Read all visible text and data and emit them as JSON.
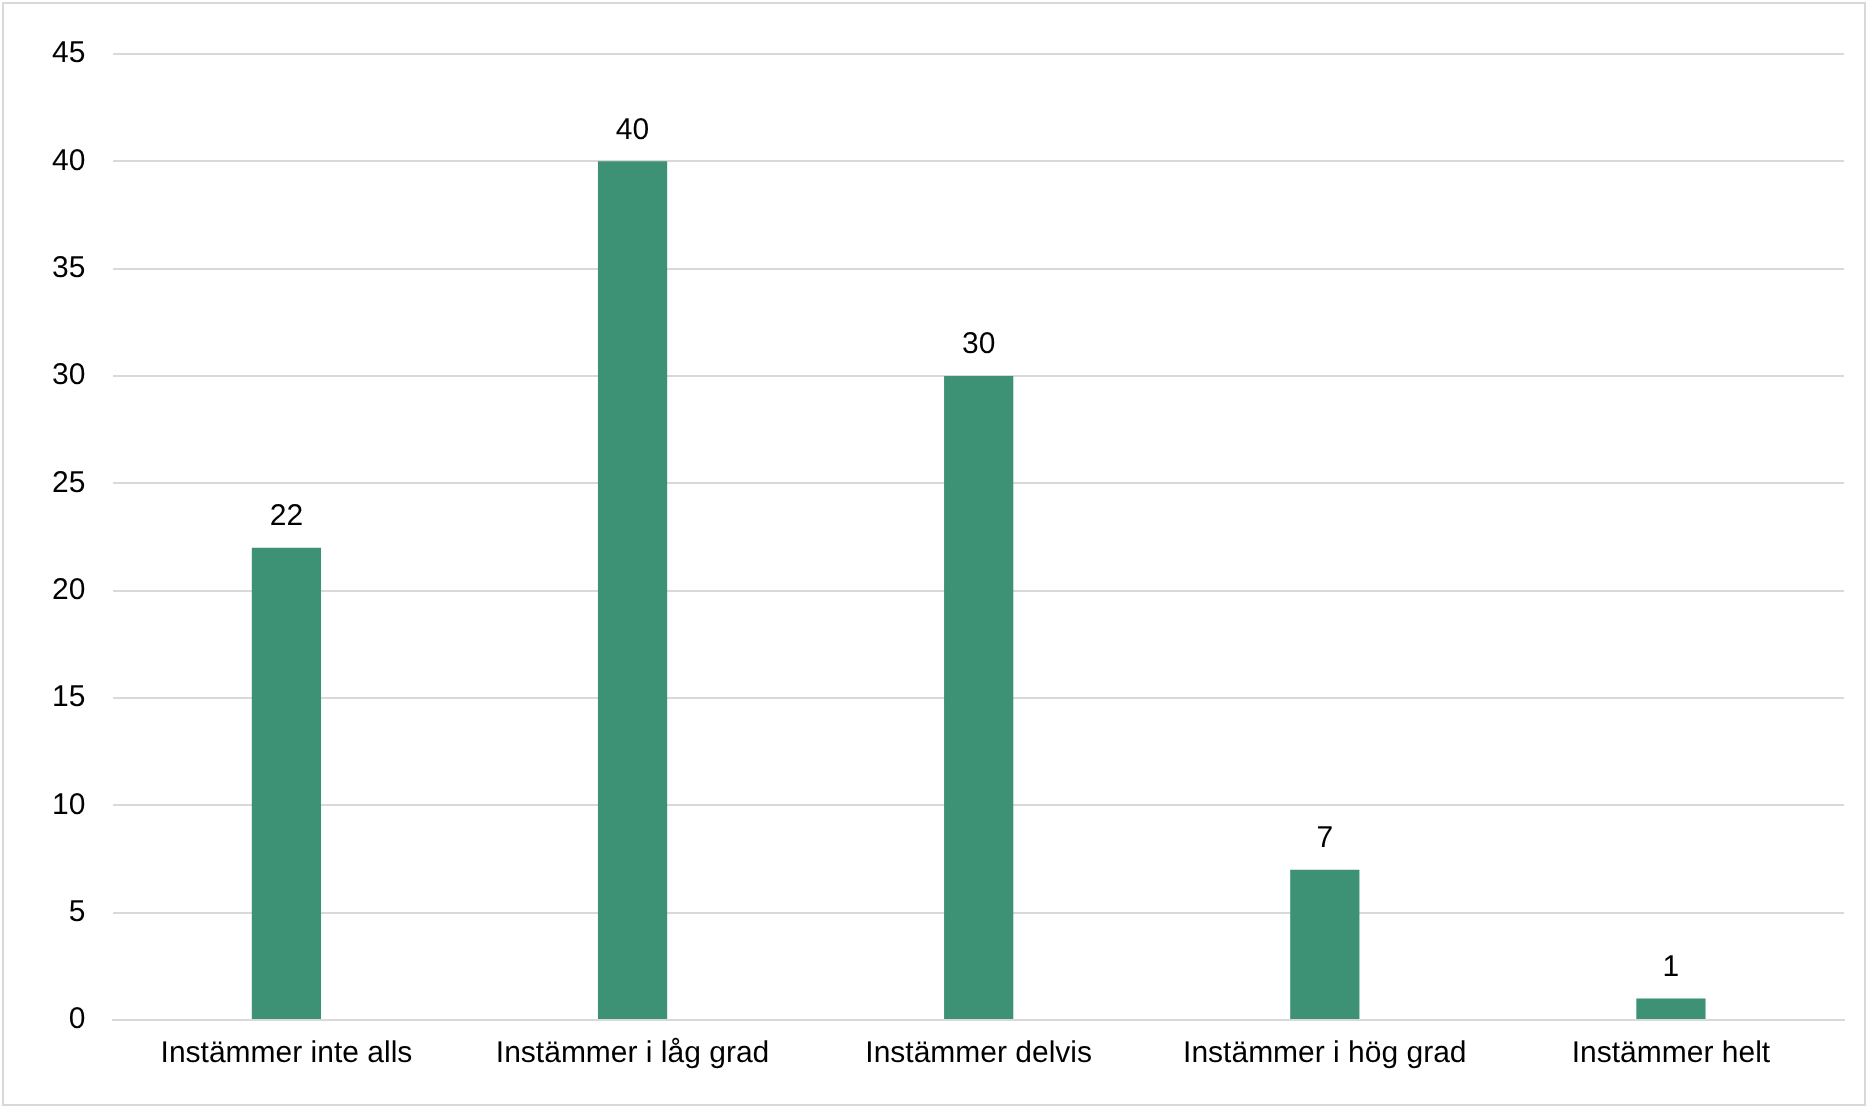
{
  "chart_data": {
    "type": "bar",
    "categories": [
      "Instämmer inte alls",
      "Instämmer i låg grad",
      "Instämmer delvis",
      "Instämmer i hög grad",
      "Instämmer helt"
    ],
    "values": [
      22,
      40,
      30,
      7,
      1
    ],
    "color": "#3d9275",
    "ylim": [
      0,
      45
    ],
    "yticks": [
      0,
      5,
      10,
      15,
      20,
      25,
      30,
      35,
      40,
      45
    ],
    "grid": "y",
    "data_labels": true,
    "legend": false
  }
}
